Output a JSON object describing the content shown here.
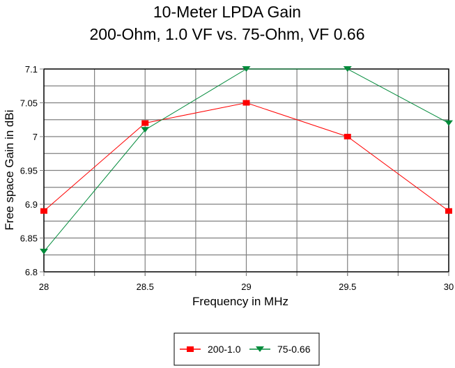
{
  "chart_data": {
    "type": "line",
    "title": "10-Meter LPDA Gain",
    "subtitle": "200-Ohm, 1.0 VF vs. 75-Ohm, VF 0.66",
    "xlabel": "Frequency in MHz",
    "ylabel": "Free space Gain in dBi",
    "xlim": [
      28,
      30
    ],
    "ylim": [
      6.8,
      7.1
    ],
    "x": [
      28,
      28.5,
      29,
      29.5,
      30
    ],
    "x_ticks": [
      "28",
      "28.5",
      "29",
      "29.5",
      "30"
    ],
    "y_ticks": [
      "6.8",
      "6.85",
      "6.9",
      "6.95",
      "7",
      "7.05",
      "7.1"
    ],
    "x_tick_values": [
      28,
      28.5,
      29,
      29.5,
      30
    ],
    "y_tick_values": [
      6.8,
      6.85,
      6.9,
      6.95,
      7.0,
      7.05,
      7.1
    ],
    "x_minor_grid_step": 0.25,
    "y_minor_grid_step": 0.025,
    "grid": true,
    "legend_position": "bottom",
    "series": [
      {
        "name": "200-1.0",
        "color": "#ff0000",
        "marker": "square",
        "values": [
          6.89,
          7.02,
          7.05,
          7.0,
          6.89
        ]
      },
      {
        "name": "75-0.66",
        "color": "#008a3a",
        "marker": "triangle-down",
        "values": [
          6.83,
          7.01,
          7.1,
          7.1,
          7.02
        ]
      }
    ]
  }
}
